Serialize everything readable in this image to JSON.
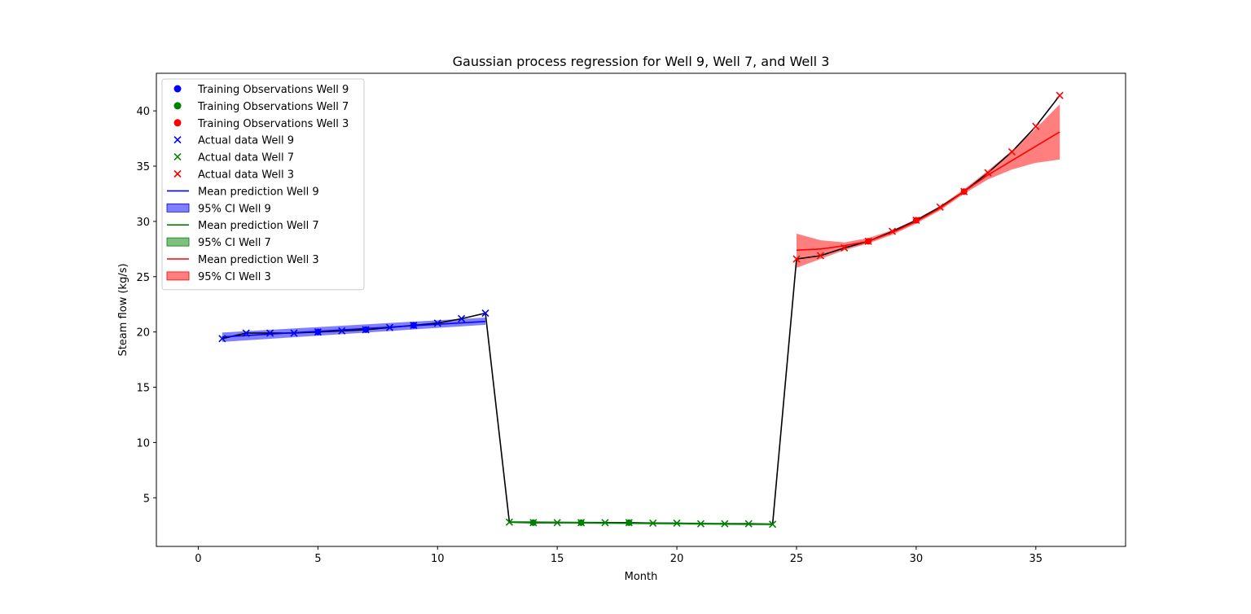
{
  "chart_data": {
    "type": "line",
    "title": "Gaussian process regression for Well 9, Well 7, and Well 3",
    "xlabel": "Month",
    "ylabel": "Steam flow (kg/s)",
    "xlim": [
      -1.75,
      38.75
    ],
    "ylim": [
      0.6,
      43.4
    ],
    "xticks": [
      0,
      5,
      10,
      15,
      20,
      25,
      30,
      35
    ],
    "yticks": [
      5,
      10,
      15,
      20,
      25,
      30,
      35,
      40
    ],
    "grid": false,
    "legend_position": "upper-left",
    "colors": {
      "well9": "#0000ff",
      "well7": "#008000",
      "well3": "#ff0000",
      "connector": "#000000"
    },
    "connector_line": {
      "x": [
        1,
        2,
        3,
        4,
        5,
        6,
        7,
        8,
        9,
        10,
        11,
        12,
        13,
        14,
        15,
        16,
        17,
        18,
        19,
        20,
        21,
        22,
        23,
        24,
        25,
        26,
        27,
        28,
        29,
        30,
        31,
        32,
        33,
        34,
        35,
        36
      ],
      "y": [
        19.4,
        19.9,
        19.9,
        19.9,
        20.0,
        20.1,
        20.2,
        20.4,
        20.6,
        20.8,
        21.2,
        21.7,
        2.8,
        2.75,
        2.75,
        2.75,
        2.75,
        2.75,
        2.7,
        2.7,
        2.65,
        2.65,
        2.65,
        2.6,
        26.6,
        26.9,
        27.6,
        28.2,
        29.1,
        30.1,
        31.3,
        32.7,
        34.4,
        36.3,
        38.6,
        41.4
      ]
    },
    "series": [
      {
        "name": "Well 9",
        "color": "#0000ff",
        "train_x": [
          5,
          7,
          9
        ],
        "train_y": [
          20.0,
          20.2,
          20.6
        ],
        "actual_x": [
          1,
          2,
          3,
          4,
          5,
          6,
          7,
          8,
          9,
          10,
          11,
          12
        ],
        "actual_y": [
          19.4,
          19.9,
          19.9,
          19.9,
          20.0,
          20.1,
          20.2,
          20.4,
          20.6,
          20.8,
          21.2,
          21.7
        ],
        "mean_x": [
          1,
          12
        ],
        "mean_y": [
          19.55,
          20.95
        ],
        "ci_lower": [
          19.1,
          20.65
        ],
        "ci_upper": [
          19.95,
          21.3
        ],
        "legend": {
          "train": "Training Observations Well 9",
          "actual": "Actual data Well 9",
          "mean": "Mean prediction Well 9",
          "ci": "95% CI Well 9"
        }
      },
      {
        "name": "Well 7",
        "color": "#008000",
        "train_x": [
          14,
          16,
          18
        ],
        "train_y": [
          2.75,
          2.75,
          2.75
        ],
        "actual_x": [
          13,
          14,
          15,
          16,
          17,
          18,
          19,
          20,
          21,
          22,
          23,
          24
        ],
        "actual_y": [
          2.8,
          2.75,
          2.75,
          2.75,
          2.75,
          2.75,
          2.7,
          2.7,
          2.65,
          2.65,
          2.65,
          2.6
        ],
        "mean_x": [
          13,
          24
        ],
        "mean_y": [
          2.8,
          2.6
        ],
        "ci_lower": [
          2.7,
          2.5
        ],
        "ci_upper": [
          2.9,
          2.7
        ],
        "legend": {
          "train": "Training Observations Well 7",
          "actual": "Actual data Well 7",
          "mean": "Mean prediction Well 7",
          "ci": "95% CI Well 7"
        }
      },
      {
        "name": "Well 3",
        "color": "#ff0000",
        "train_x": [
          28,
          30,
          32
        ],
        "train_y": [
          28.2,
          30.1,
          32.7
        ],
        "actual_x": [
          25,
          26,
          27,
          28,
          29,
          30,
          31,
          32,
          33,
          34,
          35,
          36
        ],
        "actual_y": [
          26.6,
          26.9,
          27.6,
          28.2,
          29.1,
          30.1,
          31.3,
          32.7,
          34.4,
          36.3,
          38.6,
          41.4
        ],
        "mean_x": [
          25,
          26,
          27,
          28,
          29,
          30,
          31,
          32,
          33,
          34,
          35,
          36
        ],
        "mean_y": [
          27.4,
          27.5,
          27.8,
          28.2,
          29.0,
          30.0,
          31.2,
          32.7,
          34.2,
          35.5,
          36.8,
          38.1
        ],
        "ci_lower": [
          25.8,
          26.6,
          27.4,
          28.0,
          28.8,
          29.8,
          31.0,
          32.5,
          33.8,
          34.7,
          35.3,
          35.6
        ],
        "ci_upper": [
          28.9,
          28.3,
          28.1,
          28.5,
          29.2,
          30.2,
          31.4,
          32.9,
          34.6,
          36.4,
          38.4,
          40.6
        ],
        "legend": {
          "train": "Training Observations Well 3",
          "actual": "Actual data Well 3",
          "mean": "Mean prediction Well 3",
          "ci": "95% CI Well 3"
        }
      }
    ]
  }
}
